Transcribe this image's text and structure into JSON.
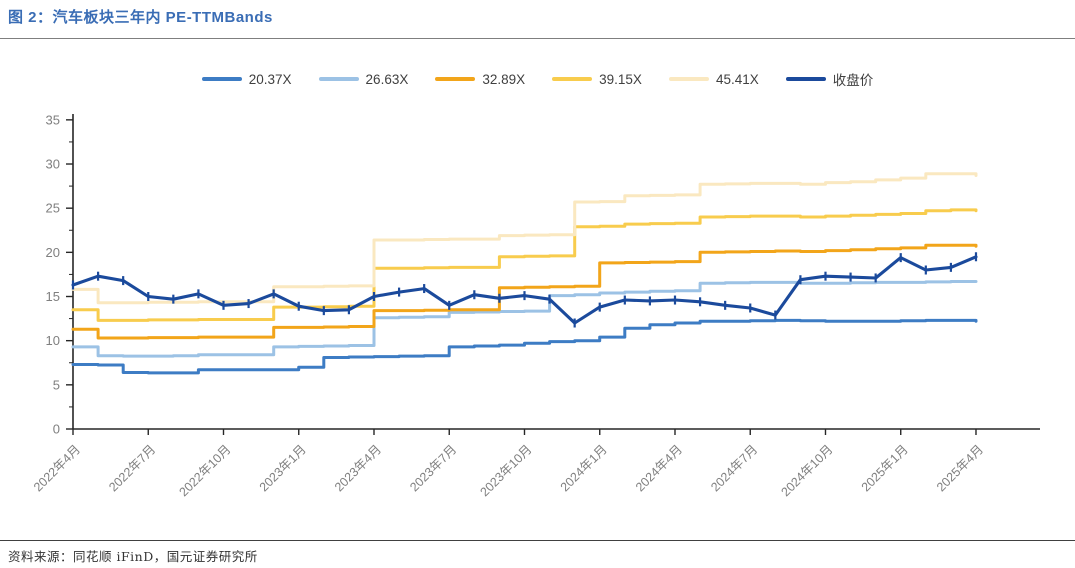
{
  "header": {
    "title": "图 2：汽车板块三年内 PE-TTMBands",
    "title_color": "#3a6db5"
  },
  "footer": {
    "source": "资料来源：同花顺 iFinD，国元证券研究所"
  },
  "chart_data": {
    "type": "line",
    "title": "汽车板块三年内 PE-TTMBands",
    "x_start": "2022-04",
    "x_end": "2025-04",
    "x_tick_labels": [
      "2022年4月",
      "2022年7月",
      "2022年10月",
      "2023年1月",
      "2023年4月",
      "2023年7月",
      "2023年10月",
      "2024年1月",
      "2024年4月",
      "2024年7月",
      "2024年10月",
      "2025年1月",
      "2025年4月"
    ],
    "months_per_point": 1,
    "ylim": [
      0,
      35
    ],
    "y_ticks": [
      0,
      5,
      10,
      15,
      20,
      25,
      30,
      35
    ],
    "y_minor_step": 2.5,
    "grid": false,
    "legend_position": "top",
    "axis_color": "#262626",
    "tick_label_color": "#7f7f7f",
    "series": [
      {
        "name": "20.37X",
        "color": "#3d7cc4",
        "style": "step",
        "markers": false,
        "values": [
          7.3,
          7.25,
          6.4,
          6.35,
          6.35,
          6.7,
          6.7,
          6.7,
          6.7,
          7.0,
          8.1,
          8.15,
          8.2,
          8.25,
          8.3,
          9.3,
          9.4,
          9.5,
          9.7,
          9.9,
          10.0,
          10.4,
          11.4,
          11.8,
          12.0,
          12.2,
          12.2,
          12.25,
          12.3,
          12.25,
          12.2,
          12.2,
          12.2,
          12.25,
          12.3,
          12.3,
          12.2
        ]
      },
      {
        "name": "26.63X",
        "color": "#9cc2e5",
        "style": "step",
        "markers": false,
        "values": [
          9.3,
          8.3,
          8.25,
          8.25,
          8.3,
          8.4,
          8.4,
          8.4,
          9.3,
          9.35,
          9.4,
          9.45,
          12.6,
          12.65,
          12.7,
          13.2,
          13.25,
          13.3,
          13.35,
          15.1,
          15.2,
          15.4,
          15.5,
          15.6,
          15.65,
          16.5,
          16.55,
          16.6,
          16.6,
          16.5,
          16.5,
          16.55,
          16.6,
          16.6,
          16.65,
          16.7,
          16.7
        ]
      },
      {
        "name": "32.89X",
        "color": "#f2a51a",
        "style": "step",
        "markers": false,
        "values": [
          11.3,
          10.3,
          10.3,
          10.35,
          10.35,
          10.4,
          10.4,
          10.4,
          11.5,
          11.5,
          11.55,
          11.6,
          13.4,
          13.4,
          13.45,
          13.5,
          13.5,
          16.0,
          16.05,
          16.1,
          16.15,
          18.8,
          18.85,
          18.9,
          18.95,
          20.0,
          20.05,
          20.1,
          20.15,
          20.1,
          20.2,
          20.3,
          20.4,
          20.5,
          20.8,
          20.8,
          20.7
        ]
      },
      {
        "name": "39.15X",
        "color": "#f8cc4d",
        "style": "step",
        "markers": false,
        "values": [
          13.5,
          12.3,
          12.3,
          12.35,
          12.35,
          12.4,
          12.4,
          12.4,
          13.8,
          13.8,
          13.85,
          13.9,
          18.2,
          18.2,
          18.25,
          18.3,
          18.3,
          19.5,
          19.55,
          19.6,
          22.9,
          22.95,
          23.2,
          23.25,
          23.3,
          24.0,
          24.05,
          24.1,
          24.1,
          24.0,
          24.1,
          24.2,
          24.3,
          24.4,
          24.7,
          24.8,
          24.7
        ]
      },
      {
        "name": "45.41X",
        "color": "#fae8c0",
        "style": "step",
        "markers": false,
        "values": [
          15.8,
          14.3,
          14.3,
          14.35,
          14.35,
          14.4,
          14.4,
          14.4,
          16.1,
          16.1,
          16.15,
          16.2,
          21.4,
          21.4,
          21.45,
          21.5,
          21.5,
          21.9,
          21.95,
          22.0,
          25.7,
          25.75,
          26.4,
          26.45,
          26.5,
          27.7,
          27.75,
          27.8,
          27.8,
          27.7,
          27.9,
          28.0,
          28.2,
          28.4,
          28.9,
          28.9,
          28.7
        ]
      },
      {
        "name": "收盘价",
        "color": "#1b4a9c",
        "style": "line",
        "markers": true,
        "values": [
          16.3,
          17.3,
          16.8,
          15.0,
          14.7,
          15.3,
          14.0,
          14.2,
          15.3,
          13.9,
          13.4,
          13.5,
          15.0,
          15.5,
          15.9,
          14.0,
          15.2,
          14.8,
          15.1,
          14.7,
          12.0,
          13.8,
          14.6,
          14.5,
          14.6,
          14.4,
          14.0,
          13.7,
          12.9,
          16.9,
          17.3,
          17.2,
          17.1,
          19.4,
          18.0,
          18.3,
          19.5
        ]
      }
    ]
  }
}
